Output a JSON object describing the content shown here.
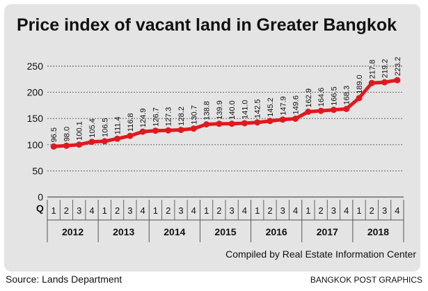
{
  "source": "Source: Lands Department",
  "credit": "BANGKOK POST GRAPHICS",
  "compiled_by": "Compiled by Real Estate Information Center",
  "quarter_axis_label": "Q",
  "colors": {
    "line": "#e0191f",
    "frame_bg": "#e4e4e4",
    "grid": "#555555",
    "text": "#111111"
  },
  "chart_data": {
    "type": "line",
    "title": "Price index of vacant land in Greater Bangkok",
    "xlabel": "",
    "ylabel": "",
    "ylim": [
      0,
      250
    ],
    "yticks": [
      0,
      50,
      100,
      150,
      200,
      250
    ],
    "grid": true,
    "years": [
      "2012",
      "2013",
      "2014",
      "2015",
      "2016",
      "2017",
      "2018"
    ],
    "quarters": [
      "1",
      "2",
      "3",
      "4"
    ],
    "x": [
      "2012 Q1",
      "2012 Q2",
      "2012 Q3",
      "2012 Q4",
      "2013 Q1",
      "2013 Q2",
      "2013 Q3",
      "2013 Q4",
      "2014 Q1",
      "2014 Q2",
      "2014 Q3",
      "2014 Q4",
      "2015 Q1",
      "2015 Q2",
      "2015 Q3",
      "2015 Q4",
      "2016 Q1",
      "2016 Q2",
      "2016 Q3",
      "2016 Q4",
      "2017 Q1",
      "2017 Q2",
      "2017 Q3",
      "2017 Q4",
      "2018 Q1",
      "2018 Q2",
      "2018 Q3",
      "2018 Q4"
    ],
    "values": [
      96.5,
      98.0,
      100.1,
      105.4,
      106.5,
      111.4,
      116.8,
      124.9,
      126.7,
      127.3,
      128.2,
      130.7,
      138.8,
      139.9,
      140.0,
      141.0,
      142.5,
      145.2,
      147.9,
      149.6,
      162.9,
      164.6,
      166.5,
      168.3,
      189.0,
      217.8,
      219.2,
      223.2
    ],
    "labels": [
      "96.5",
      "98.0",
      "100.1",
      "105.4",
      "106.5",
      "111.4",
      "116.8",
      "124.9",
      "126.7",
      "127.3",
      "128.2",
      "130.7",
      "138.8",
      "139.9",
      "140.0",
      "141.0",
      "142.5",
      "145.2",
      "147.9",
      "149.6",
      "162.9",
      "164.6",
      "166.5",
      "168.3",
      "189.0",
      "217.8",
      "219.2",
      "223.2"
    ]
  }
}
